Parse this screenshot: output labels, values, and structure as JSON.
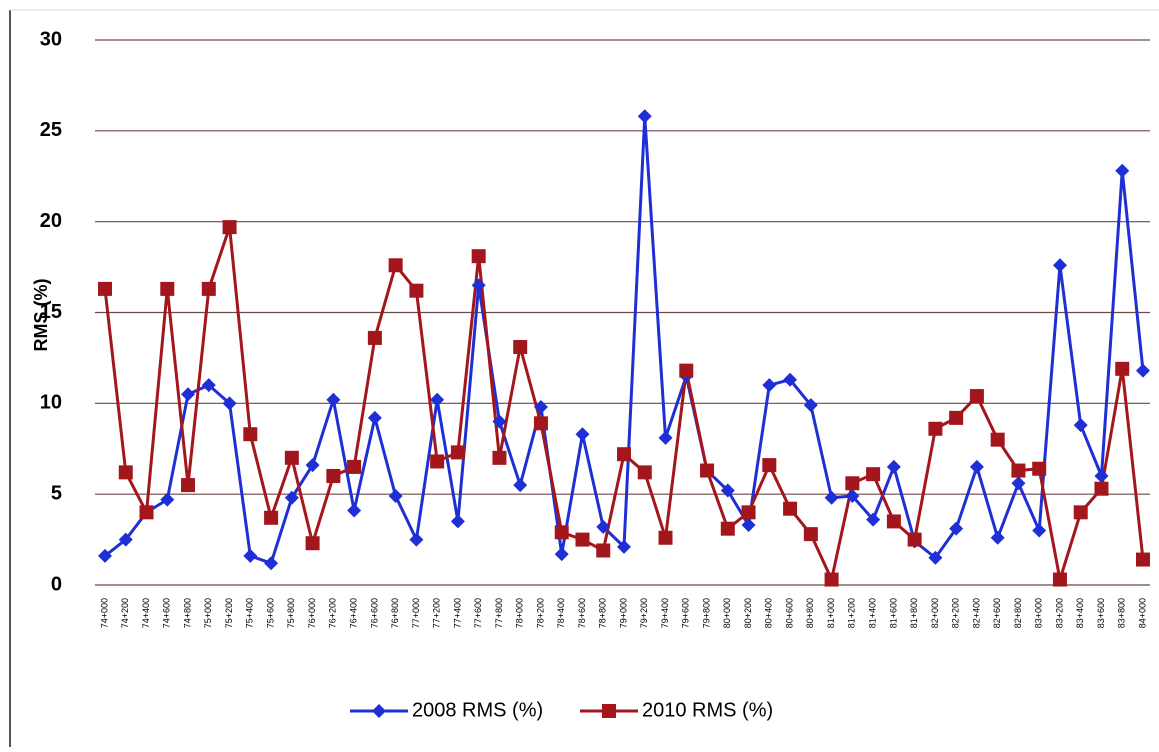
{
  "chart_data": {
    "type": "line",
    "y_label": "RMS (%)",
    "categories": [
      "74+000",
      "74+200",
      "74+400",
      "74+600",
      "74+800",
      "75+000",
      "75+200",
      "75+400",
      "75+600",
      "75+800",
      "76+000",
      "76+200",
      "76+400",
      "76+600",
      "76+800",
      "77+000",
      "77+200",
      "77+400",
      "77+600",
      "77+800",
      "78+000",
      "78+200",
      "78+400",
      "78+600",
      "78+800",
      "79+000",
      "79+200",
      "79+400",
      "79+600",
      "79+800",
      "80+000",
      "80+200",
      "80+400",
      "80+600",
      "80+800",
      "81+000",
      "81+200",
      "81+400",
      "81+600",
      "81+800",
      "82+000",
      "82+200",
      "82+400",
      "82+600",
      "82+800",
      "83+000",
      "83+200",
      "83+400",
      "83+600",
      "83+800",
      "84+000"
    ],
    "series": [
      {
        "name": "2008 RMS (%)",
        "color": "#1f2fd6",
        "marker": "diamond",
        "values": [
          1.6,
          2.5,
          4.0,
          4.7,
          10.5,
          11.0,
          10.0,
          1.6,
          1.2,
          4.8,
          6.6,
          10.2,
          4.1,
          9.2,
          4.9,
          2.5,
          10.2,
          3.5,
          16.5,
          9.0,
          5.5,
          9.8,
          1.7,
          8.3,
          3.2,
          2.1,
          25.8,
          8.1,
          11.5,
          6.3,
          5.2,
          3.3,
          11.0,
          11.3,
          9.9,
          4.8,
          4.9,
          3.6,
          6.5,
          2.4,
          1.5,
          3.1,
          6.5,
          2.6,
          5.6,
          3.0,
          17.6,
          8.8,
          6.0,
          22.8,
          11.8
        ]
      },
      {
        "name": "2010 RMS (%)",
        "color": "#a3161c",
        "marker": "square",
        "values": [
          16.3,
          6.2,
          4.0,
          16.3,
          5.5,
          16.3,
          19.7,
          8.3,
          3.7,
          7.0,
          2.3,
          6.0,
          6.5,
          13.6,
          17.6,
          16.2,
          6.8,
          7.3,
          18.1,
          7.0,
          13.1,
          8.9,
          2.9,
          2.5,
          1.9,
          7.2,
          6.2,
          2.6,
          11.8,
          6.3,
          3.1,
          4.0,
          6.6,
          4.2,
          2.8,
          0.3,
          5.6,
          6.1,
          3.5,
          2.5,
          8.6,
          9.2,
          10.4,
          8.0,
          6.3,
          6.4,
          0.3,
          4.0,
          5.3,
          11.9,
          1.4
        ]
      }
    ],
    "ylim": [
      0,
      30
    ],
    "yticks": [
      0,
      5,
      10,
      15,
      20,
      25,
      30
    ],
    "grid": true,
    "legend": "bottom"
  }
}
